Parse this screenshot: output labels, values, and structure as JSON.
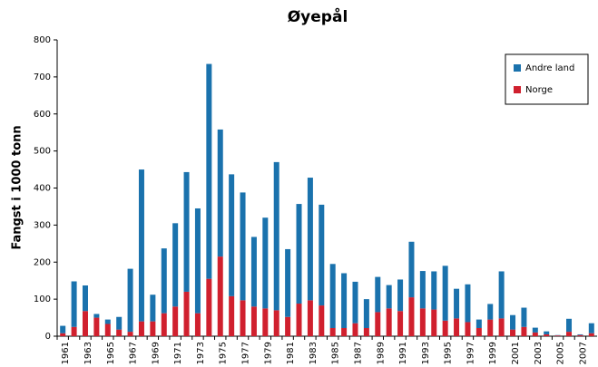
{
  "chart_data": {
    "type": "stacked_bar",
    "title": "Øyepål",
    "y_label": "Fangst i 1000 tonn",
    "categories": [
      "1961",
      null,
      "1963",
      null,
      "1965",
      null,
      "1967",
      null,
      "1969",
      null,
      "1971",
      null,
      "1973",
      null,
      "1975",
      null,
      "1977",
      null,
      "1979",
      null,
      "1981",
      null,
      "1983",
      null,
      "1985",
      null,
      "1987",
      null,
      "1989",
      null,
      "1991",
      null,
      "1993",
      null,
      "1995",
      null,
      "1997",
      null,
      "1999",
      null,
      "2001",
      null,
      "2003",
      null,
      "2005",
      null,
      "2007",
      null
    ],
    "series": [
      {
        "name": "Norge",
        "color": "#d0202e",
        "values": [
          8,
          25,
          68,
          50,
          33,
          18,
          12,
          40,
          40,
          62,
          80,
          120,
          62,
          155,
          215,
          108,
          97,
          80,
          75,
          70,
          52,
          88,
          97,
          83,
          22,
          22,
          35,
          22,
          65,
          75,
          68,
          105,
          75,
          72,
          42,
          48,
          38,
          22,
          45,
          48,
          18,
          25,
          10,
          5,
          2,
          12,
          3,
          8
        ]
      },
      {
        "name": "Andre land",
        "color": "#1a72ad",
        "values": [
          20,
          123,
          69,
          10,
          12,
          34,
          170,
          410,
          72,
          175,
          225,
          323,
          283,
          580,
          343,
          329,
          291,
          188,
          245,
          400,
          183,
          269,
          331,
          272,
          173,
          148,
          112,
          78,
          95,
          63,
          85,
          150,
          101,
          103,
          148,
          80,
          102,
          23,
          42,
          127,
          39,
          52,
          13,
          8,
          1,
          35,
          2,
          27
        ]
      }
    ],
    "ylim": [
      0,
      800
    ],
    "yticks": [
      0,
      100,
      200,
      300,
      400,
      500,
      600,
      700,
      800
    ],
    "legend": "top-right"
  }
}
